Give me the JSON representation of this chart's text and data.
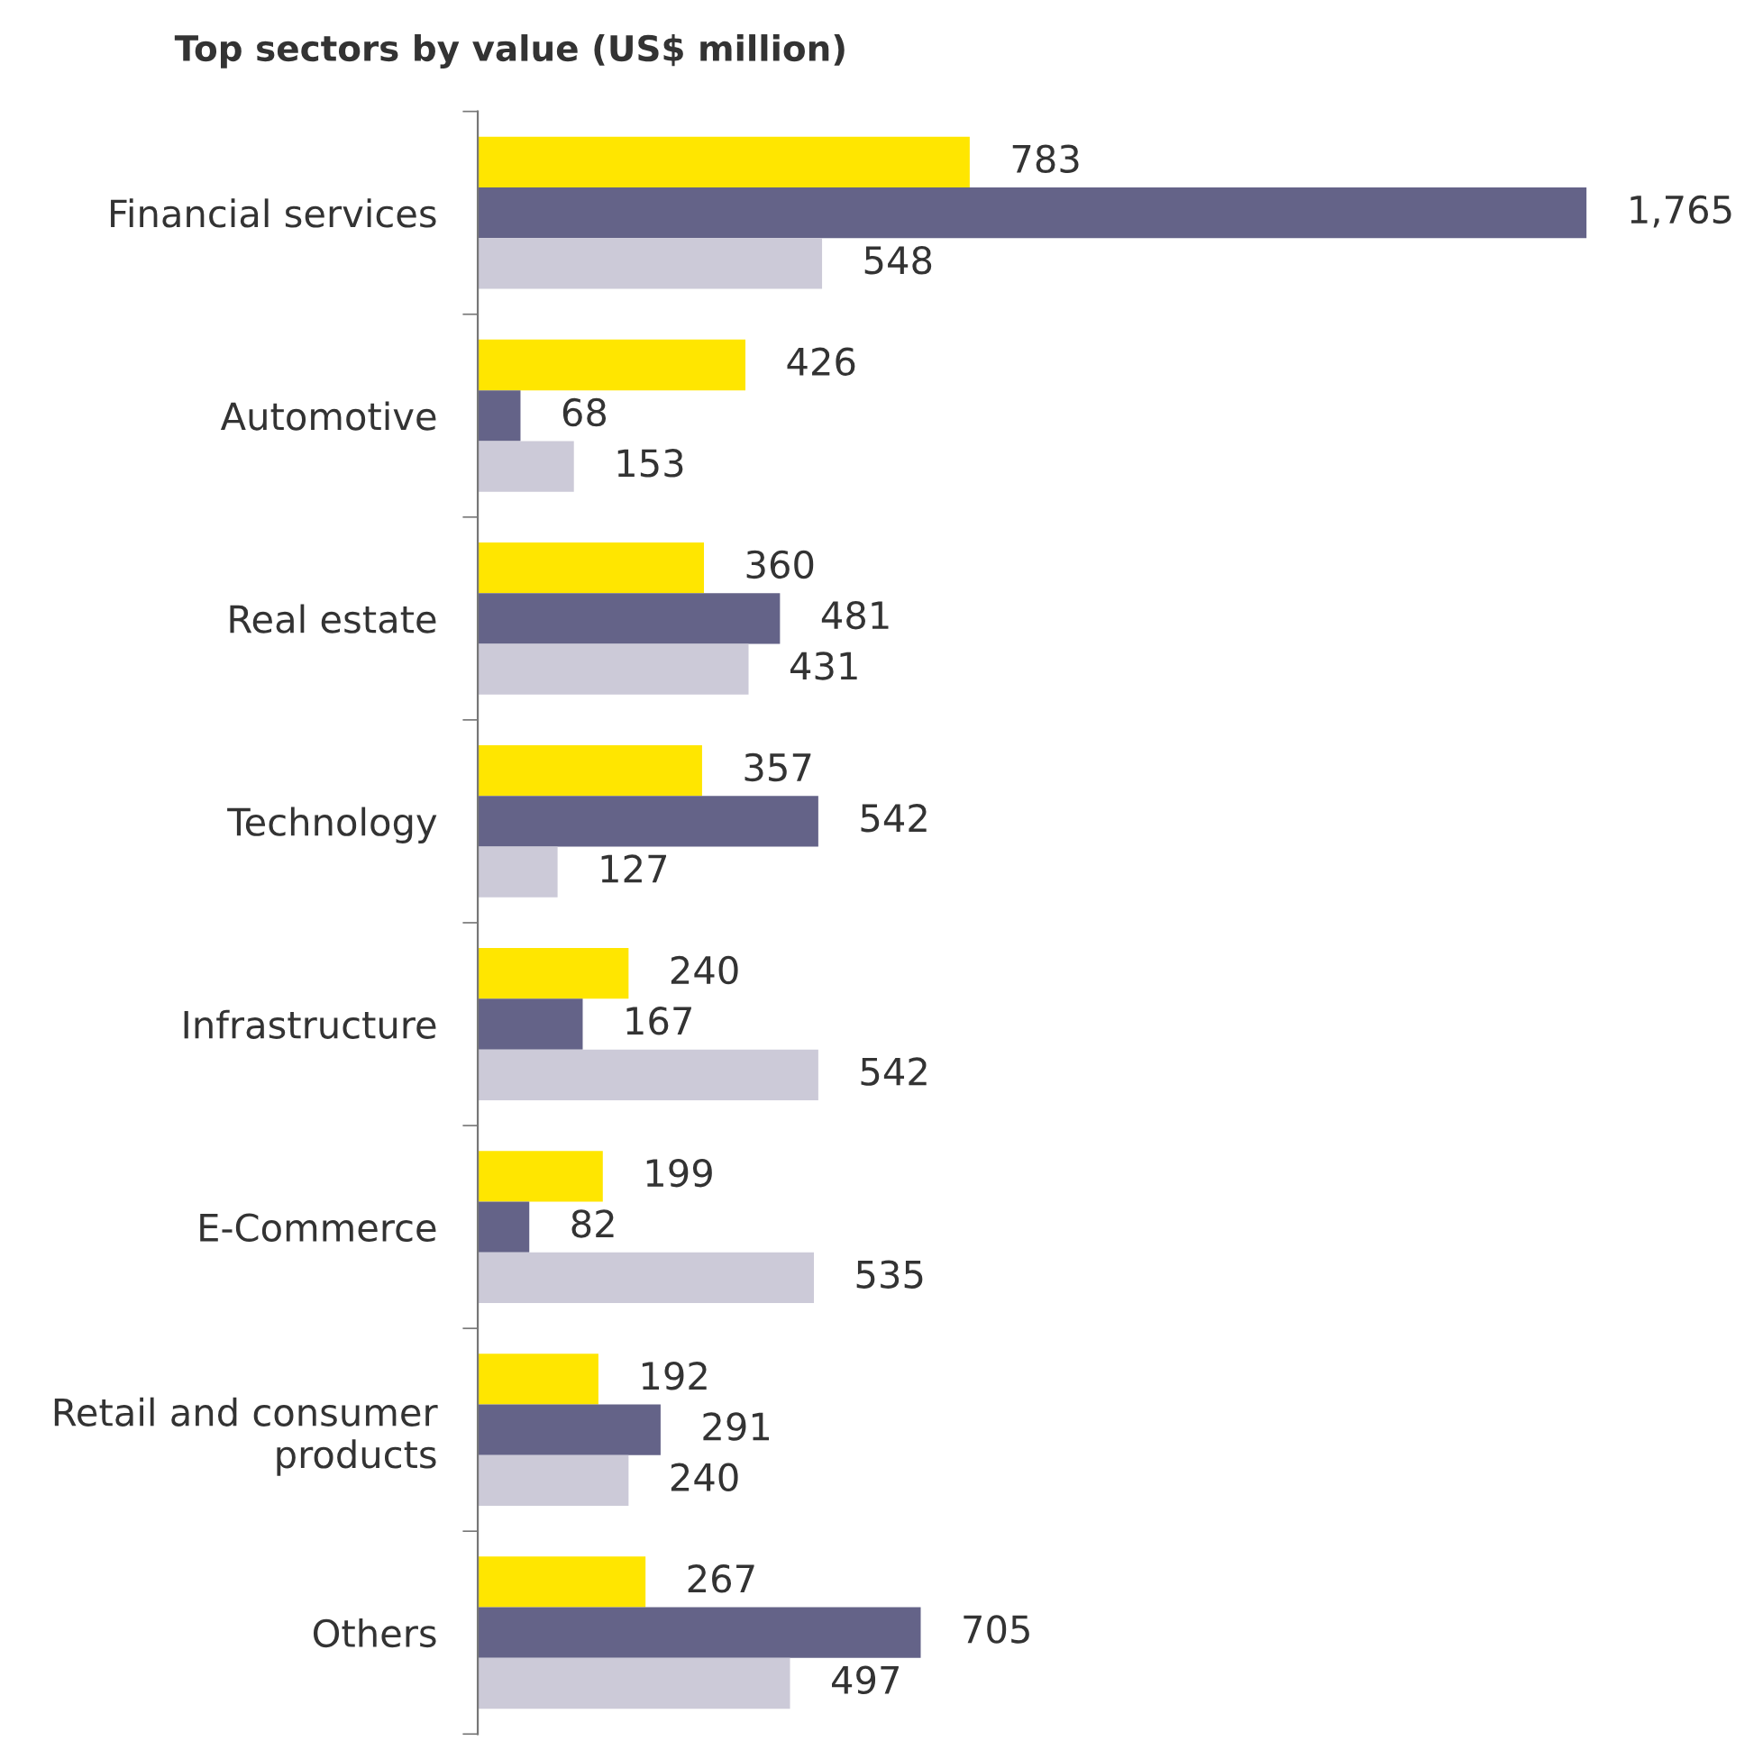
{
  "chart_data": {
    "type": "bar",
    "orientation": "horizontal",
    "title": "Top sectors by value (US$ million)",
    "categories": [
      "Financial services",
      "Automotive",
      "Real estate",
      "Technology",
      "Infrastructure",
      "E-Commerce",
      "Retail and consumer\nproducts",
      "Others"
    ],
    "series": [
      {
        "color": "#ffe600",
        "values": [
          783,
          426,
          360,
          357,
          240,
          199,
          192,
          267
        ],
        "value_labels": [
          "783",
          "426",
          "360",
          "357",
          "240",
          "199",
          "192",
          "267"
        ]
      },
      {
        "color": "#646388",
        "values": [
          1765,
          68,
          481,
          542,
          167,
          82,
          291,
          705
        ],
        "value_labels": [
          "1,765",
          "68",
          "481",
          "542",
          "167",
          "82",
          "291",
          "705"
        ]
      },
      {
        "color": "#cccad8",
        "values": [
          548,
          153,
          431,
          127,
          542,
          535,
          240,
          497
        ],
        "value_labels": [
          "548",
          "153",
          "431",
          "127",
          "542",
          "535",
          "240",
          "497"
        ]
      }
    ],
    "tick_labels": "y",
    "grid": false,
    "legend": false
  }
}
